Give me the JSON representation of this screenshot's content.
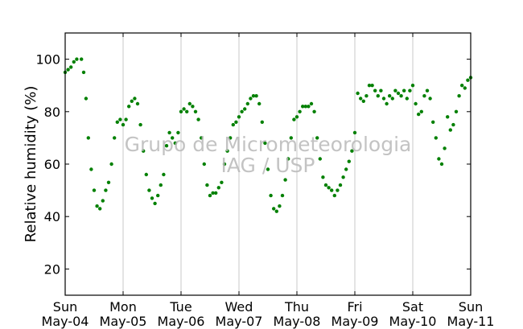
{
  "chart_data": {
    "type": "scatter",
    "title": "",
    "xlabel": "",
    "ylabel": "Relative humidity (%)",
    "ylim": [
      10,
      110
    ],
    "yticks": [
      20,
      40,
      60,
      80,
      100
    ],
    "xlim_days": [
      0,
      7
    ],
    "xticks": [
      {
        "day": 0,
        "weekday": "Sun",
        "date": "May-04"
      },
      {
        "day": 1,
        "weekday": "Mon",
        "date": "May-05"
      },
      {
        "day": 2,
        "weekday": "Tue",
        "date": "May-06"
      },
      {
        "day": 3,
        "weekday": "Wed",
        "date": "May-07"
      },
      {
        "day": 4,
        "weekday": "Thu",
        "date": "May-08"
      },
      {
        "day": 5,
        "weekday": "Fri",
        "date": "May-09"
      },
      {
        "day": 6,
        "weekday": "Sat",
        "date": "May-10"
      },
      {
        "day": 7,
        "weekday": "Sun",
        "date": "May-11"
      }
    ],
    "grid": "vertical-at-ticks",
    "watermark": [
      "Grupo de Micrometeorologia",
      "IAG / USP"
    ],
    "series": [
      {
        "color": "#008000",
        "points": [
          [
            0.0,
            95
          ],
          [
            0.05,
            96
          ],
          [
            0.1,
            97
          ],
          [
            0.15,
            99
          ],
          [
            0.2,
            100
          ],
          [
            0.28,
            100
          ],
          [
            0.32,
            95
          ],
          [
            0.36,
            85
          ],
          [
            0.4,
            70
          ],
          [
            0.45,
            58
          ],
          [
            0.5,
            50
          ],
          [
            0.55,
            44
          ],
          [
            0.6,
            43
          ],
          [
            0.65,
            46
          ],
          [
            0.7,
            50
          ],
          [
            0.75,
            53
          ],
          [
            0.8,
            60
          ],
          [
            0.85,
            70
          ],
          [
            0.9,
            76
          ],
          [
            0.95,
            77
          ],
          [
            1.0,
            75
          ],
          [
            1.05,
            77
          ],
          [
            1.1,
            82
          ],
          [
            1.15,
            84
          ],
          [
            1.2,
            85
          ],
          [
            1.25,
            83
          ],
          [
            1.3,
            75
          ],
          [
            1.35,
            65
          ],
          [
            1.4,
            56
          ],
          [
            1.45,
            50
          ],
          [
            1.5,
            47
          ],
          [
            1.55,
            45
          ],
          [
            1.6,
            48
          ],
          [
            1.65,
            52
          ],
          [
            1.7,
            56
          ],
          [
            1.75,
            67
          ],
          [
            1.8,
            72
          ],
          [
            1.85,
            70
          ],
          [
            1.9,
            68
          ],
          [
            1.95,
            72
          ],
          [
            2.0,
            80
          ],
          [
            2.05,
            81
          ],
          [
            2.1,
            80
          ],
          [
            2.15,
            83
          ],
          [
            2.2,
            82
          ],
          [
            2.25,
            80
          ],
          [
            2.3,
            77
          ],
          [
            2.35,
            70
          ],
          [
            2.4,
            60
          ],
          [
            2.45,
            52
          ],
          [
            2.5,
            48
          ],
          [
            2.55,
            49
          ],
          [
            2.6,
            49
          ],
          [
            2.65,
            51
          ],
          [
            2.7,
            53
          ],
          [
            2.75,
            60
          ],
          [
            2.8,
            65
          ],
          [
            2.85,
            70
          ],
          [
            2.9,
            75
          ],
          [
            2.95,
            76
          ],
          [
            3.0,
            78
          ],
          [
            3.05,
            80
          ],
          [
            3.1,
            81
          ],
          [
            3.15,
            83
          ],
          [
            3.2,
            85
          ],
          [
            3.25,
            86
          ],
          [
            3.3,
            86
          ],
          [
            3.35,
            83
          ],
          [
            3.4,
            76
          ],
          [
            3.45,
            68
          ],
          [
            3.5,
            58
          ],
          [
            3.55,
            48
          ],
          [
            3.6,
            43
          ],
          [
            3.65,
            42
          ],
          [
            3.7,
            44
          ],
          [
            3.75,
            48
          ],
          [
            3.8,
            54
          ],
          [
            3.85,
            62
          ],
          [
            3.9,
            70
          ],
          [
            3.95,
            77
          ],
          [
            4.0,
            78
          ],
          [
            4.05,
            80
          ],
          [
            4.1,
            82
          ],
          [
            4.15,
            82
          ],
          [
            4.2,
            82
          ],
          [
            4.25,
            83
          ],
          [
            4.3,
            80
          ],
          [
            4.35,
            70
          ],
          [
            4.4,
            62
          ],
          [
            4.45,
            55
          ],
          [
            4.5,
            52
          ],
          [
            4.55,
            51
          ],
          [
            4.6,
            50
          ],
          [
            4.65,
            48
          ],
          [
            4.7,
            50
          ],
          [
            4.75,
            52
          ],
          [
            4.8,
            55
          ],
          [
            4.85,
            58
          ],
          [
            4.9,
            61
          ],
          [
            4.95,
            65
          ],
          [
            5.0,
            72
          ],
          [
            5.05,
            87
          ],
          [
            5.1,
            85
          ],
          [
            5.15,
            84
          ],
          [
            5.2,
            86
          ],
          [
            5.25,
            90
          ],
          [
            5.3,
            90
          ],
          [
            5.35,
            88
          ],
          [
            5.4,
            86
          ],
          [
            5.45,
            88
          ],
          [
            5.5,
            85
          ],
          [
            5.55,
            83
          ],
          [
            5.6,
            86
          ],
          [
            5.65,
            85
          ],
          [
            5.7,
            88
          ],
          [
            5.75,
            87
          ],
          [
            5.8,
            86
          ],
          [
            5.85,
            88
          ],
          [
            5.9,
            85
          ],
          [
            5.95,
            88
          ],
          [
            6.0,
            90
          ],
          [
            6.05,
            83
          ],
          [
            6.1,
            79
          ],
          [
            6.15,
            80
          ],
          [
            6.2,
            86
          ],
          [
            6.25,
            88
          ],
          [
            6.3,
            85
          ],
          [
            6.35,
            76
          ],
          [
            6.4,
            70
          ],
          [
            6.45,
            62
          ],
          [
            6.5,
            60
          ],
          [
            6.55,
            66
          ],
          [
            6.6,
            78
          ],
          [
            6.65,
            73
          ],
          [
            6.7,
            75
          ],
          [
            6.75,
            80
          ],
          [
            6.8,
            86
          ],
          [
            6.85,
            90
          ],
          [
            6.9,
            89
          ],
          [
            6.95,
            92
          ],
          [
            7.0,
            93
          ]
        ]
      }
    ]
  }
}
